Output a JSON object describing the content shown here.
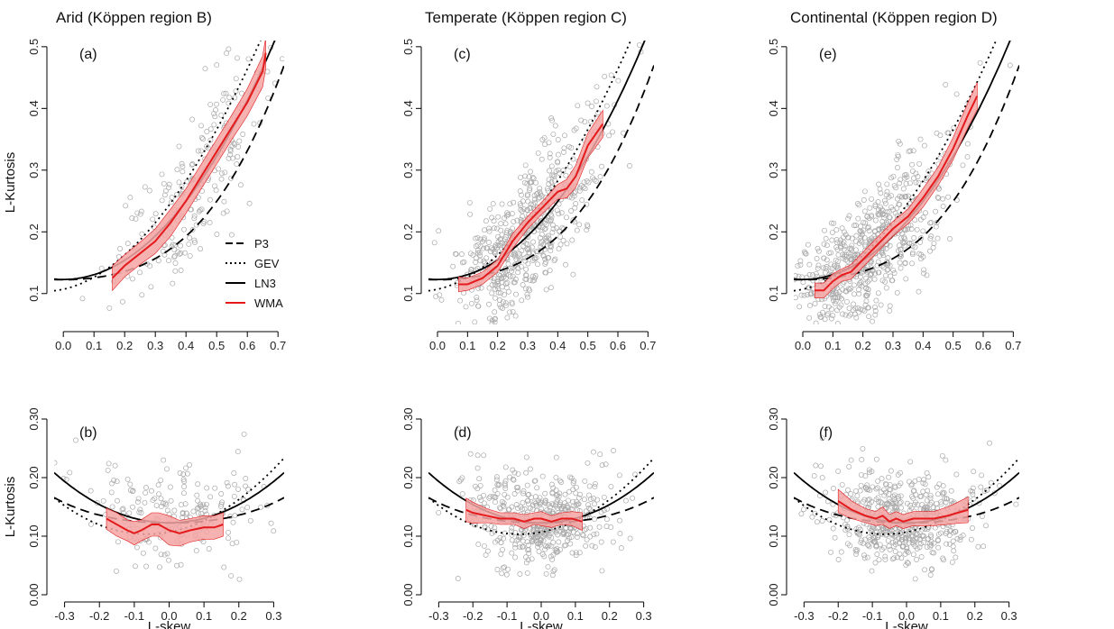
{
  "columns": [
    {
      "title": "Arid (Köppen region B)"
    },
    {
      "title": "Temperate (Köppen region C)"
    },
    {
      "title": "Continental (Köppen region D)"
    }
  ],
  "legend": {
    "position": "inside panel (a), lower-right",
    "items": [
      {
        "label": "P3",
        "style": "dashed"
      },
      {
        "label": "GEV",
        "style": "dotted"
      },
      {
        "label": "LN3",
        "style": "solid"
      },
      {
        "label": "WMA",
        "style": "solid-red"
      }
    ]
  },
  "colors": {
    "wma": "#e41a1c",
    "band": "#f4a3a3",
    "points": "#a8a8a8",
    "curves": "#000000"
  },
  "chart_data": [
    {
      "type": "scatter",
      "panel": "(a)",
      "region": "Arid (Köppen region B)",
      "xlabel": "",
      "ylabel": "L-Kurtosis",
      "xlim": [
        -0.03,
        0.72
      ],
      "ylim": [
        0.05,
        0.51
      ],
      "xticks": [
        "0.0",
        "0.1",
        "0.2",
        "0.3",
        "0.4",
        "0.5",
        "0.6",
        "0.7"
      ],
      "yticks": [
        "0.1",
        "0.2",
        "0.3",
        "0.4",
        "0.5"
      ],
      "curves": [
        "P3",
        "GEV",
        "LN3"
      ],
      "wma": {
        "x": [
          0.16,
          0.2,
          0.25,
          0.3,
          0.35,
          0.4,
          0.45,
          0.5,
          0.55,
          0.6,
          0.65,
          0.66
        ],
        "y": [
          0.125,
          0.145,
          0.165,
          0.185,
          0.215,
          0.25,
          0.29,
          0.33,
          0.37,
          0.41,
          0.46,
          0.49
        ],
        "band_half": [
          0.02,
          0.018,
          0.018,
          0.02,
          0.022,
          0.02,
          0.02,
          0.02,
          0.02,
          0.022,
          0.025,
          0.025
        ]
      },
      "points": {
        "n": 220,
        "x_center": 0.42,
        "x_spread": 0.13
      }
    },
    {
      "type": "scatter",
      "panel": "(b)",
      "region": "Arid (Köppen region B)",
      "xlabel": "L-skew",
      "ylabel": "L-Kurtosis",
      "xlim": [
        -0.33,
        0.33
      ],
      "ylim": [
        0.0,
        0.3
      ],
      "xticks": [
        "-0.3",
        "-0.2",
        "-0.1",
        "0.0",
        "0.1",
        "0.2",
        "0.3"
      ],
      "yticks": [
        "0.00",
        "0.10",
        "0.20",
        "0.30"
      ],
      "curves": [
        "P3",
        "GEV",
        "LN3"
      ],
      "wma": {
        "x": [
          -0.18,
          -0.15,
          -0.12,
          -0.1,
          -0.08,
          -0.05,
          -0.03,
          0.0,
          0.03,
          0.06,
          0.1,
          0.13,
          0.155
        ],
        "y": [
          0.13,
          0.12,
          0.11,
          0.105,
          0.11,
          0.12,
          0.12,
          0.11,
          0.105,
          0.11,
          0.115,
          0.115,
          0.12
        ],
        "band_half": [
          0.018,
          0.02,
          0.018,
          0.02,
          0.018,
          0.02,
          0.02,
          0.025,
          0.022,
          0.02,
          0.02,
          0.02,
          0.02
        ]
      },
      "points": {
        "n": 200,
        "x_center": 0.0,
        "x_spread": 0.13
      }
    },
    {
      "type": "scatter",
      "panel": "(c)",
      "region": "Temperate (Köppen region C)",
      "xlabel": "",
      "ylabel": "",
      "xlim": [
        -0.03,
        0.72
      ],
      "ylim": [
        0.05,
        0.51
      ],
      "xticks": [
        "0.0",
        "0.1",
        "0.2",
        "0.3",
        "0.4",
        "0.5",
        "0.6",
        "0.7"
      ],
      "yticks": [
        "0.1",
        "0.2",
        "0.3",
        "0.4",
        "0.5"
      ],
      "curves": [
        "P3",
        "GEV",
        "LN3"
      ],
      "wma": {
        "x": [
          0.07,
          0.1,
          0.15,
          0.2,
          0.25,
          0.3,
          0.35,
          0.4,
          0.43,
          0.46,
          0.5,
          0.55
        ],
        "y": [
          0.115,
          0.115,
          0.125,
          0.145,
          0.185,
          0.215,
          0.24,
          0.265,
          0.27,
          0.29,
          0.34,
          0.375
        ],
        "band_half": [
          0.012,
          0.01,
          0.01,
          0.01,
          0.012,
          0.01,
          0.01,
          0.012,
          0.015,
          0.018,
          0.02,
          0.022
        ]
      },
      "points": {
        "n": 600,
        "x_center": 0.3,
        "x_spread": 0.12
      }
    },
    {
      "type": "scatter",
      "panel": "(d)",
      "region": "Temperate (Köppen region C)",
      "xlabel": "L-skew",
      "ylabel": "",
      "xlim": [
        -0.33,
        0.33
      ],
      "ylim": [
        0.0,
        0.3
      ],
      "xticks": [
        "-0.3",
        "-0.2",
        "-0.1",
        "0.0",
        "0.1",
        "0.2",
        "0.3"
      ],
      "yticks": [
        "0.00",
        "0.10",
        "0.20",
        "0.30"
      ],
      "curves": [
        "P3",
        "GEV",
        "LN3"
      ],
      "wma": {
        "x": [
          -0.22,
          -0.2,
          -0.16,
          -0.12,
          -0.08,
          -0.05,
          -0.02,
          0.0,
          0.03,
          0.06,
          0.09,
          0.12
        ],
        "y": [
          0.145,
          0.14,
          0.135,
          0.13,
          0.13,
          0.125,
          0.13,
          0.13,
          0.125,
          0.13,
          0.13,
          0.125
        ],
        "band_half": [
          0.02,
          0.018,
          0.012,
          0.01,
          0.01,
          0.012,
          0.01,
          0.012,
          0.01,
          0.01,
          0.012,
          0.015
        ]
      },
      "points": {
        "n": 500,
        "x_center": 0.0,
        "x_spread": 0.11
      }
    },
    {
      "type": "scatter",
      "panel": "(e)",
      "region": "Continental (Köppen region D)",
      "xlabel": "",
      "ylabel": "",
      "xlim": [
        -0.03,
        0.72
      ],
      "ylim": [
        0.05,
        0.51
      ],
      "xticks": [
        "0.0",
        "0.1",
        "0.2",
        "0.3",
        "0.4",
        "0.5",
        "0.6",
        "0.7"
      ],
      "yticks": [
        "0.1",
        "0.2",
        "0.3",
        "0.4",
        "0.5"
      ],
      "curves": [
        "P3",
        "GEV",
        "LN3"
      ],
      "wma": {
        "x": [
          0.04,
          0.07,
          0.1,
          0.13,
          0.16,
          0.19,
          0.22,
          0.25,
          0.3,
          0.35,
          0.4,
          0.45,
          0.5,
          0.55,
          0.58
        ],
        "y": [
          0.105,
          0.105,
          0.12,
          0.13,
          0.135,
          0.15,
          0.165,
          0.18,
          0.205,
          0.225,
          0.255,
          0.29,
          0.335,
          0.39,
          0.42
        ],
        "band_half": [
          0.012,
          0.012,
          0.012,
          0.01,
          0.012,
          0.012,
          0.012,
          0.012,
          0.012,
          0.012,
          0.015,
          0.015,
          0.018,
          0.02,
          0.022
        ]
      },
      "points": {
        "n": 650,
        "x_center": 0.22,
        "x_spread": 0.12
      }
    },
    {
      "type": "scatter",
      "panel": "(f)",
      "region": "Continental (Köppen region D)",
      "xlabel": "L-skew",
      "ylabel": "",
      "xlim": [
        -0.33,
        0.33
      ],
      "ylim": [
        0.0,
        0.3
      ],
      "xticks": [
        "-0.3",
        "-0.2",
        "-0.1",
        "0.0",
        "0.1",
        "0.2",
        "0.3"
      ],
      "yticks": [
        "0.00",
        "0.10",
        "0.20",
        "0.30"
      ],
      "curves": [
        "P3",
        "GEV",
        "LN3"
      ],
      "wma": {
        "x": [
          -0.2,
          -0.16,
          -0.12,
          -0.09,
          -0.07,
          -0.05,
          -0.03,
          -0.01,
          0.02,
          0.05,
          0.08,
          0.12,
          0.15,
          0.18
        ],
        "y": [
          0.16,
          0.145,
          0.135,
          0.13,
          0.135,
          0.125,
          0.13,
          0.125,
          0.13,
          0.13,
          0.13,
          0.135,
          0.14,
          0.145
        ],
        "band_half": [
          0.02,
          0.015,
          0.012,
          0.012,
          0.015,
          0.012,
          0.012,
          0.012,
          0.012,
          0.012,
          0.012,
          0.015,
          0.018,
          0.022
        ]
      },
      "points": {
        "n": 550,
        "x_center": -0.02,
        "x_spread": 0.11
      }
    }
  ]
}
